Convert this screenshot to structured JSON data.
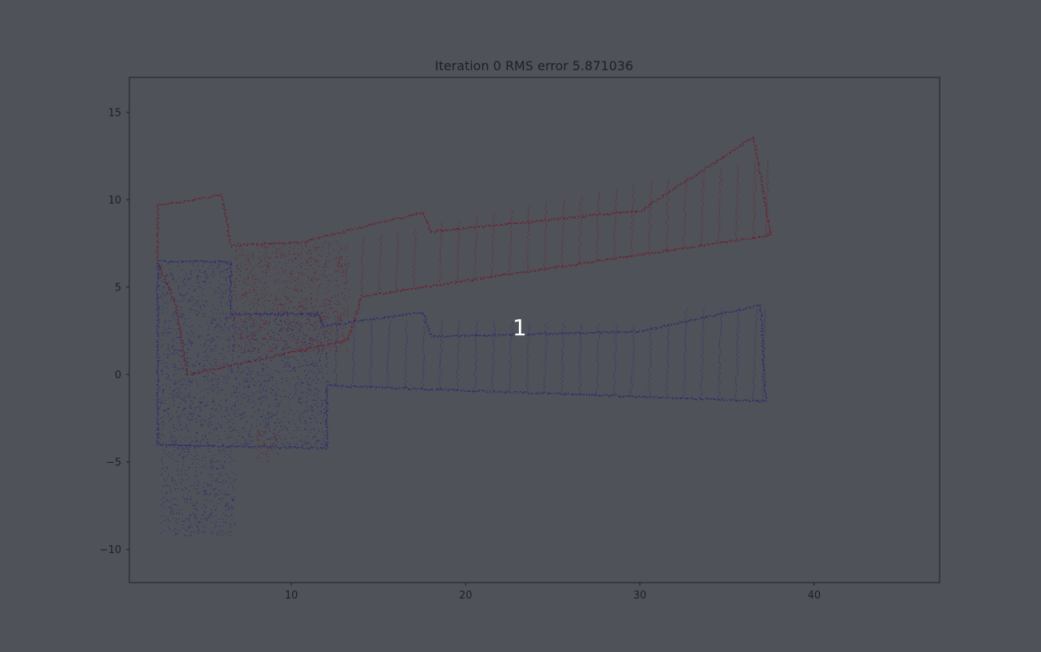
{
  "chart_data": {
    "type": "scatter",
    "title": "Iteration 0  RMS error 5.871036",
    "xlabel": "",
    "ylabel": "",
    "xlim": [
      0.7,
      47.2
    ],
    "ylim": [
      -11.9,
      17.0
    ],
    "xticks": [
      10,
      20,
      30,
      40
    ],
    "yticks": [
      15,
      10,
      5,
      0,
      -5,
      -10
    ],
    "xtick_labels": [
      "10",
      "20",
      "30",
      "40"
    ],
    "ytick_labels": [
      "15",
      "10",
      "5",
      "0",
      "−5",
      "−10"
    ],
    "grid": false,
    "legend": "none",
    "overlay_label": "1",
    "overlay_position": [
      23.1,
      2.7
    ],
    "series": [
      {
        "color": "#6b1c2a",
        "outline": [
          [
            2.3,
            9.7
          ],
          [
            6.0,
            10.3
          ],
          [
            6.5,
            7.4
          ],
          [
            10.5,
            7.6
          ],
          [
            17.5,
            9.3
          ],
          [
            18.0,
            8.2
          ],
          [
            30.0,
            9.4
          ],
          [
            36.5,
            13.6
          ],
          [
            37.5,
            8.0
          ],
          [
            14.0,
            4.5
          ],
          [
            13.2,
            2.0
          ],
          [
            4.0,
            0.0
          ],
          [
            3.4,
            3.8
          ],
          [
            2.3,
            6.5
          ]
        ],
        "dense_regions": [
          [
            2.3,
            6.5,
            10.4,
            6.2
          ],
          [
            6.6,
            13.3,
            1.3,
            7.6
          ],
          [
            8.0,
            9.2,
            -5.0,
            -3.0
          ]
        ],
        "scan_arcs_x": [
          14.0,
          15.0,
          16.0,
          17.0,
          18.5,
          19.5,
          20.5,
          21.5,
          22.5,
          23.5,
          24.5,
          25.5,
          26.5,
          27.5,
          28.5,
          29.5,
          30.5,
          31.5,
          32.5,
          33.5,
          34.5,
          35.5,
          36.5,
          37.2
        ]
      },
      {
        "color": "#2b286b",
        "outline": [
          [
            2.3,
            6.5
          ],
          [
            6.5,
            6.5
          ],
          [
            6.5,
            3.5
          ],
          [
            11.5,
            3.5
          ],
          [
            11.8,
            2.8
          ],
          [
            17.5,
            3.6
          ],
          [
            18.0,
            2.2
          ],
          [
            30.0,
            2.5
          ],
          [
            36.9,
            4.0
          ],
          [
            37.2,
            -1.5
          ],
          [
            12.0,
            -0.6
          ],
          [
            12.0,
            -4.2
          ],
          [
            2.3,
            -4.0
          ]
        ],
        "dense_regions": [
          [
            2.3,
            6.5,
            -4.1,
            6.5
          ],
          [
            6.5,
            12.1,
            -4.1,
            3.6
          ],
          [
            2.5,
            6.8,
            -9.2,
            -4.0
          ]
        ],
        "scan_arcs_x": [
          12.5,
          13.5,
          14.5,
          15.5,
          16.5,
          17.5,
          18.5,
          19.5,
          20.5,
          21.5,
          22.5,
          23.5,
          24.5,
          25.5,
          26.5,
          27.5,
          28.5,
          29.5,
          30.5,
          31.5,
          32.5,
          33.5,
          34.5,
          35.5,
          36.5,
          37.0
        ]
      }
    ]
  }
}
